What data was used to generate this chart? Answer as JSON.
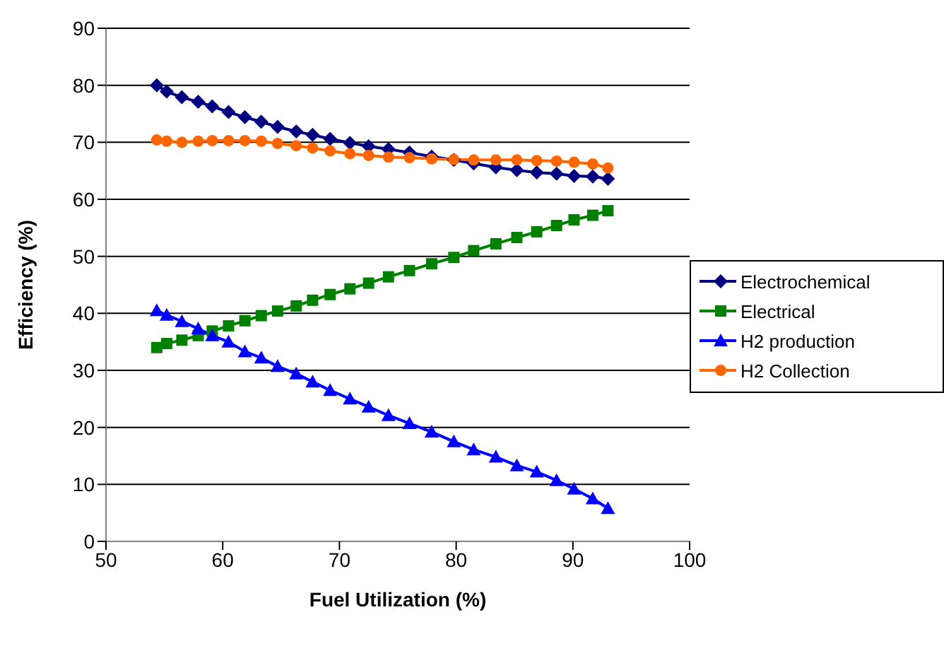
{
  "chart_data": {
    "type": "line",
    "xlabel": "Fuel Utilization (%)",
    "ylabel": "Efficiency (%)",
    "x": [
      54.35,
      55.2,
      56.5,
      57.9,
      59.1,
      60.5,
      61.9,
      63.3,
      64.7,
      66.3,
      67.7,
      69.2,
      70.9,
      72.5,
      74.2,
      76.0,
      77.9,
      79.8,
      81.5,
      83.4,
      85.2,
      86.9,
      88.6,
      90.1,
      91.7,
      93.0
    ],
    "series": [
      {
        "name": "Electrochemical",
        "color": "#000080",
        "marker": "diamond",
        "values": [
          80,
          78.9,
          77.9,
          77.1,
          76.3,
          75.3,
          74.4,
          73.6,
          72.7,
          71.9,
          71.3,
          70.6,
          69.9,
          69.3,
          68.8,
          68.2,
          67.5,
          66.9,
          66.3,
          65.6,
          65.1,
          64.7,
          64.5,
          64.1,
          64.0,
          63.6
        ]
      },
      {
        "name": "Electrical",
        "color": "#008000",
        "marker": "square",
        "values": [
          34.0,
          34.7,
          35.3,
          36.1,
          36.9,
          37.8,
          38.7,
          39.6,
          40.4,
          41.3,
          42.3,
          43.3,
          44.3,
          45.3,
          46.4,
          47.5,
          48.7,
          49.8,
          51.0,
          52.2,
          53.3,
          54.3,
          55.4,
          56.4,
          57.2,
          58.0
        ]
      },
      {
        "name": "H2 production",
        "color": "#0000ff",
        "marker": "triangle",
        "values": [
          40.5,
          39.7,
          38.6,
          37.3,
          36.1,
          35.0,
          33.3,
          32.2,
          30.7,
          29.4,
          28.0,
          26.5,
          25.0,
          23.6,
          22.1,
          20.7,
          19.2,
          17.5,
          16.1,
          14.8,
          13.3,
          12.2,
          10.7,
          9.2,
          7.5,
          5.8
        ]
      },
      {
        "name": "H2 Collection",
        "color": "#ff6600",
        "marker": "circle",
        "values": [
          70.4,
          70.2,
          70.0,
          70.2,
          70.3,
          70.3,
          70.3,
          70.2,
          69.8,
          69.4,
          69.0,
          68.5,
          68.0,
          67.7,
          67.4,
          67.3,
          67.1,
          67.0,
          66.9,
          66.9,
          66.9,
          66.8,
          66.7,
          66.5,
          66.2,
          65.5
        ]
      }
    ],
    "xlim": [
      50,
      100
    ],
    "xticks": [
      50,
      60,
      70,
      80,
      90,
      100
    ],
    "ylim": [
      0,
      90
    ],
    "yticks": [
      0,
      10,
      20,
      30,
      40,
      50,
      60,
      70,
      80,
      90
    ],
    "grid": "y",
    "legend": "right"
  }
}
